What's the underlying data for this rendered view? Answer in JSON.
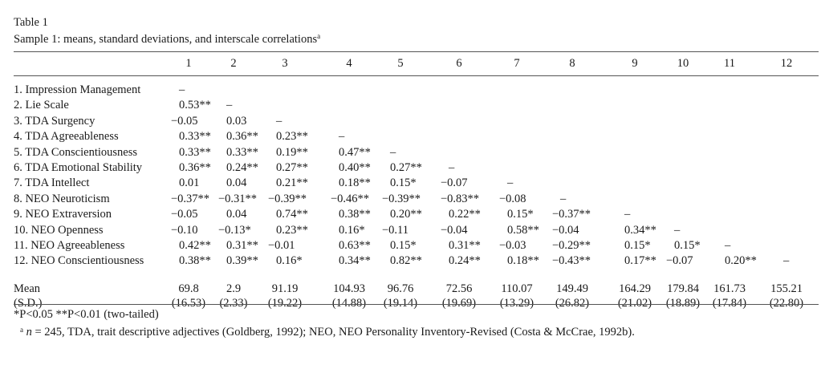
{
  "table": {
    "label": "Table 1",
    "caption": "Sample 1: means, standard deviations, and interscale correlations",
    "caption_sup": "a",
    "columns": [
      "1",
      "2",
      "3",
      "4",
      "5",
      "6",
      "7",
      "8",
      "9",
      "10",
      "11",
      "12"
    ],
    "rows": [
      {
        "label": "1. Impression Management",
        "values": [
          "–"
        ]
      },
      {
        "label": "2. Lie Scale",
        "values": [
          "0.53**",
          "–"
        ]
      },
      {
        "label": "3. TDA Surgency",
        "values": [
          "−0.05",
          "0.03",
          "–"
        ]
      },
      {
        "label": "4. TDA Agreeableness",
        "values": [
          "0.33**",
          "0.36**",
          "0.23**",
          "–"
        ]
      },
      {
        "label": "5. TDA Conscientiousness",
        "values": [
          "0.33**",
          "0.33**",
          "0.19**",
          "0.47**",
          "–"
        ]
      },
      {
        "label": "6. TDA Emotional Stability",
        "values": [
          "0.36**",
          "0.24**",
          "0.27**",
          "0.40**",
          "0.27**",
          "–"
        ]
      },
      {
        "label": "7. TDA Intellect",
        "values": [
          "0.01",
          "0.04",
          "0.21**",
          "0.18**",
          "0.15*",
          "−0.07",
          "–"
        ]
      },
      {
        "label": "8. NEO Neuroticism",
        "values": [
          "−0.37**",
          "−0.31**",
          "−0.39**",
          "−0.46**",
          "−0.39**",
          "−0.83**",
          "−0.08",
          "–"
        ]
      },
      {
        "label": "9. NEO Extraversion",
        "values": [
          "−0.05",
          "0.04",
          "0.74**",
          "0.38**",
          "0.20**",
          "0.22**",
          "0.15*",
          "−0.37**",
          "–"
        ]
      },
      {
        "label": "10. NEO Openness",
        "values": [
          "−0.10",
          "−0.13*",
          "0.23**",
          "0.16*",
          "−0.11",
          "−0.04",
          "0.58**",
          "−0.04",
          "0.34**",
          "–"
        ]
      },
      {
        "label": "11. NEO Agreeableness",
        "values": [
          "0.42**",
          "0.31**",
          "−0.01",
          "0.63**",
          "0.15*",
          "0.31**",
          "−0.03",
          "−0.29**",
          "0.15*",
          "0.15*",
          "–"
        ]
      },
      {
        "label": "12. NEO Conscientiousness",
        "values": [
          "0.38**",
          "0.39**",
          "0.16*",
          "0.34**",
          "0.82**",
          "0.24**",
          "0.18**",
          "−0.43**",
          "0.17**",
          "−0.07",
          "0.20**",
          "–"
        ]
      }
    ],
    "mean": {
      "label": "Mean",
      "values": [
        "69.8",
        "2.9",
        "91.19",
        "104.93",
        "96.76",
        "72.56",
        "110.07",
        "149.49",
        "164.29",
        "179.84",
        "161.73",
        "155.21"
      ]
    },
    "sd": {
      "label": "(S.D.)",
      "values": [
        "(16.53)",
        "(2.33)",
        "(19.22)",
        "(14.88)",
        "(19.14)",
        "(19.69)",
        "(13.29)",
        "(26.82)",
        "(21.02)",
        "(18.89)",
        "(17.84)",
        "(22.80)"
      ]
    }
  },
  "footnotes": {
    "significance": "*P<0.05 **P<0.01 (two-tailed)",
    "note_marker": "a",
    "note_n": "n",
    "note_text": " = 245, TDA, trait descriptive adjectives (Goldberg, 1992); NEO, NEO Personality Inventory-Revised (Costa & McCrae, 1992b)."
  }
}
